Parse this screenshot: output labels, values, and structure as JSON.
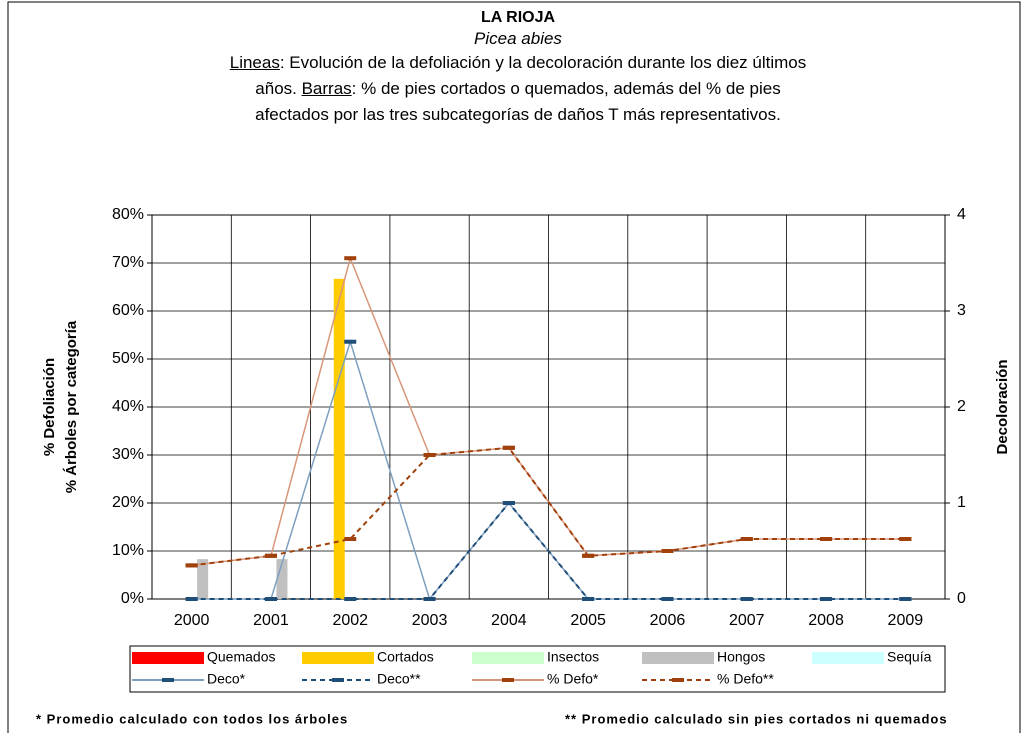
{
  "chart_data": {
    "type": "bar",
    "title": "LA RIOJA",
    "subtitle": "Picea abies",
    "description": [
      "Lineas",
      ": Evolución de la defoliación y la decoloración durante los diez últimos",
      "años. ",
      "Barras",
      ": % de pies cortados o quemados, además del % de pies",
      "afectados por las tres subcategorías de daños T más representativos."
    ],
    "y_label": [
      "% Defoliación",
      "% Árboles por categoría"
    ],
    "y2_label": "Decoloración",
    "categories": [
      "2000",
      "2001",
      "2002",
      "2003",
      "2004",
      "2005",
      "2006",
      "2007",
      "2008",
      "2009"
    ],
    "ylim": [
      0,
      80
    ],
    "yticks": [
      {
        "value": 0,
        "label": "0%"
      },
      {
        "value": 10,
        "label": "10%"
      },
      {
        "value": 20,
        "label": "20%"
      },
      {
        "value": 30,
        "label": "30%"
      },
      {
        "value": 40,
        "label": "40%"
      },
      {
        "value": 50,
        "label": "50%"
      },
      {
        "value": 60,
        "label": "60%"
      },
      {
        "value": 70,
        "label": "70%"
      },
      {
        "value": 80,
        "label": "80%"
      }
    ],
    "y2lim": [
      0,
      4
    ],
    "y2ticks": [
      0,
      1,
      2,
      3,
      4
    ],
    "grid": true,
    "series": [
      {
        "name": "Quemados",
        "type": "bar",
        "color": "#ff0000",
        "values": [
          0,
          0,
          0,
          0,
          0,
          0,
          0,
          0,
          0,
          0
        ]
      },
      {
        "name": "Cortados",
        "type": "bar",
        "color": "#ffcc00",
        "values": [
          0,
          0,
          66.7,
          0,
          0,
          0,
          0,
          0,
          0,
          0
        ]
      },
      {
        "name": "Insectos",
        "type": "bar",
        "color": "#ccffcc",
        "values": [
          0,
          0,
          0,
          0,
          0,
          0,
          0,
          0,
          0,
          0
        ]
      },
      {
        "name": "Hongos",
        "type": "bar",
        "color": "#c0c0c0",
        "values": [
          8.3,
          8.3,
          0,
          0,
          0,
          0,
          0,
          0,
          0,
          0
        ]
      },
      {
        "name": "Sequía",
        "type": "bar",
        "color": "#ccffff",
        "values": [
          0,
          0,
          0,
          0,
          0,
          0,
          0,
          0,
          0,
          0
        ]
      },
      {
        "name": "Deco*",
        "type": "line",
        "axis": "y2",
        "color": "#7f9fc0",
        "marker_color": "#1f4e79",
        "dash": false,
        "values": [
          0,
          0,
          2.68,
          0,
          1,
          0,
          0,
          0,
          0,
          0
        ]
      },
      {
        "name": "Deco**",
        "type": "line",
        "axis": "y2",
        "color": "#1f4e79",
        "marker_color": "#1f4e79",
        "dash": true,
        "values": [
          0,
          0,
          0,
          0,
          1,
          0,
          0,
          0,
          0,
          0
        ]
      },
      {
        "name": "% Defo*",
        "type": "line",
        "color": "#d9967a",
        "marker_color": "#a0400a",
        "dash": false,
        "values": [
          7,
          9,
          71,
          30,
          31.5,
          9,
          10,
          12.5,
          12.5,
          12.5
        ]
      },
      {
        "name": "% Defo**",
        "type": "line",
        "color": "#a0400a",
        "marker_color": "#a0400a",
        "dash": true,
        "values": [
          7,
          9,
          12.5,
          30,
          31.5,
          9,
          10,
          12.5,
          12.5,
          12.5
        ]
      }
    ],
    "footnotes": [
      "* Promedio calculado con todos los árboles",
      "** Promedio calculado sin pies cortados ni quemados"
    ]
  }
}
